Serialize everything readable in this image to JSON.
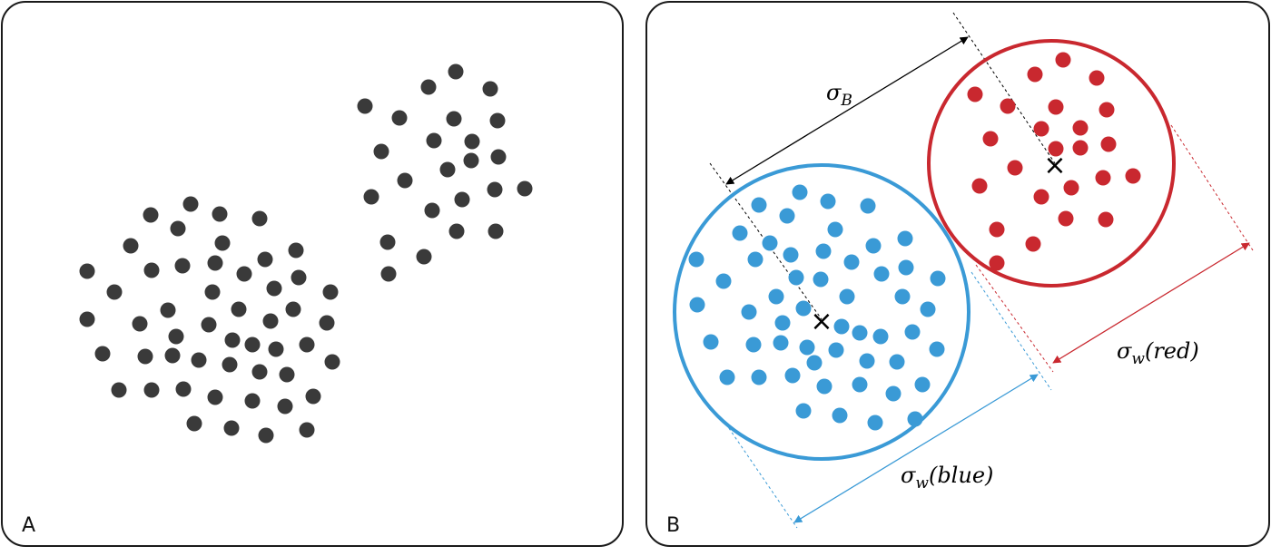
{
  "panel_a": {
    "label": "A",
    "dot_color": "#3a3a3a",
    "dot_count": 73
  },
  "panel_b": {
    "label": "B",
    "blue_color": "#3a9ad6",
    "red_color": "#c9282f",
    "black_color": "#000000",
    "blue_dot_count": 57,
    "red_dot_count": 25,
    "centroid_marker": "×",
    "sigma_b": {
      "symbol": "σ",
      "subscript": "B"
    },
    "sigma_w_red": {
      "symbol": "σ",
      "subscript": "w",
      "arg": "(red)"
    },
    "sigma_w_blue": {
      "symbol": "σ",
      "subscript": "w",
      "arg": "(blue)"
    }
  }
}
